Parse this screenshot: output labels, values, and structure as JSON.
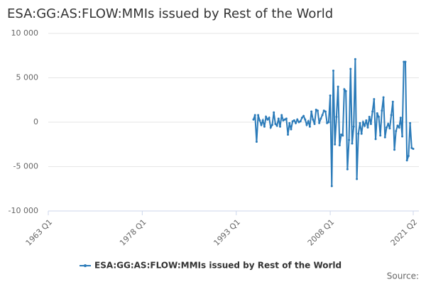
{
  "chart_data": {
    "type": "line",
    "title": "ESA:GG:AS:FLOW:MMIs issued by Rest of the World",
    "source": "Source:",
    "x": [
      "1995 Q4",
      "1996 Q1",
      "1996 Q2",
      "1996 Q3",
      "1996 Q4",
      "1997 Q1",
      "1997 Q2",
      "1997 Q3",
      "1997 Q4",
      "1998 Q1",
      "1998 Q2",
      "1998 Q3",
      "1998 Q4",
      "1999 Q1",
      "1999 Q2",
      "1999 Q3",
      "1999 Q4",
      "2000 Q1",
      "2000 Q2",
      "2000 Q3",
      "2000 Q4",
      "2001 Q1",
      "2001 Q2",
      "2001 Q3",
      "2001 Q4",
      "2002 Q1",
      "2002 Q2",
      "2002 Q3",
      "2002 Q4",
      "2003 Q1",
      "2003 Q2",
      "2003 Q3",
      "2003 Q4",
      "2004 Q1",
      "2004 Q2",
      "2004 Q3",
      "2004 Q4",
      "2005 Q1",
      "2005 Q2",
      "2005 Q3",
      "2005 Q4",
      "2006 Q1",
      "2006 Q2",
      "2006 Q3",
      "2006 Q4",
      "2007 Q1",
      "2007 Q2",
      "2007 Q3",
      "2007 Q4",
      "2008 Q1",
      "2008 Q2",
      "2008 Q3",
      "2008 Q4",
      "2009 Q1",
      "2009 Q2",
      "2009 Q3",
      "2009 Q4",
      "2010 Q1",
      "2010 Q2",
      "2010 Q3",
      "2010 Q4",
      "2011 Q1",
      "2011 Q2",
      "2011 Q3",
      "2011 Q4",
      "2012 Q1",
      "2012 Q2",
      "2012 Q3",
      "2012 Q4",
      "2013 Q1",
      "2013 Q2",
      "2013 Q3",
      "2013 Q4",
      "2014 Q1",
      "2014 Q2",
      "2014 Q3",
      "2014 Q4",
      "2015 Q1",
      "2015 Q2",
      "2015 Q3",
      "2015 Q4",
      "2016 Q1",
      "2016 Q2",
      "2016 Q3",
      "2016 Q4",
      "2017 Q1",
      "2017 Q2",
      "2017 Q3",
      "2017 Q4",
      "2018 Q1",
      "2018 Q2",
      "2018 Q3",
      "2018 Q4",
      "2019 Q1",
      "2019 Q2",
      "2019 Q3",
      "2019 Q4",
      "2020 Q1",
      "2020 Q2",
      "2020 Q3",
      "2020 Q4",
      "2021 Q1",
      "2021 Q2"
    ],
    "series": [
      {
        "name": "ESA:GG:AS:FLOW:MMIs issued by Rest of the World",
        "color": "#2b7bb9",
        "values": [
          300,
          800,
          -2200,
          800,
          200,
          -300,
          200,
          -500,
          600,
          300,
          500,
          -600,
          -300,
          1100,
          -200,
          -400,
          400,
          -500,
          800,
          200,
          300,
          400,
          -1400,
          -100,
          -800,
          100,
          200,
          -100,
          300,
          0,
          100,
          500,
          700,
          300,
          -300,
          100,
          -500,
          1200,
          300,
          -200,
          1400,
          1300,
          -100,
          400,
          800,
          1300,
          1200,
          -100,
          0,
          3000,
          -7200,
          5800,
          -2500,
          600,
          4000,
          -2600,
          -1400,
          -1500,
          3700,
          3500,
          -5300,
          -2000,
          6000,
          -2400,
          -500,
          7100,
          -6400,
          -1300,
          -100,
          -1300,
          0,
          -400,
          200,
          -600,
          600,
          -200,
          1200,
          2600,
          -1900,
          1000,
          600,
          -1500,
          1300,
          2800,
          -1700,
          -600,
          -200,
          -700,
          800,
          2300,
          -3100,
          -1000,
          -400,
          -600,
          500,
          -1600,
          6800,
          6800,
          -4300,
          -3800,
          -100,
          -2900,
          -3000
        ]
      }
    ],
    "xlim": [
      "1963 Q1",
      "2021 Q2"
    ],
    "xticks": [
      "1963 Q1",
      "1978 Q1",
      "1993 Q1",
      "2008 Q1",
      "2021 Q2"
    ],
    "ylim": [
      -10000,
      10000
    ],
    "yticks": [
      {
        "value": -10000,
        "label": "-10 000"
      },
      {
        "value": -5000,
        "label": "-5 000"
      },
      0,
      {
        "value": 5000,
        "label": "5 000"
      },
      {
        "value": 10000,
        "label": "10 000"
      }
    ],
    "grid": true
  }
}
